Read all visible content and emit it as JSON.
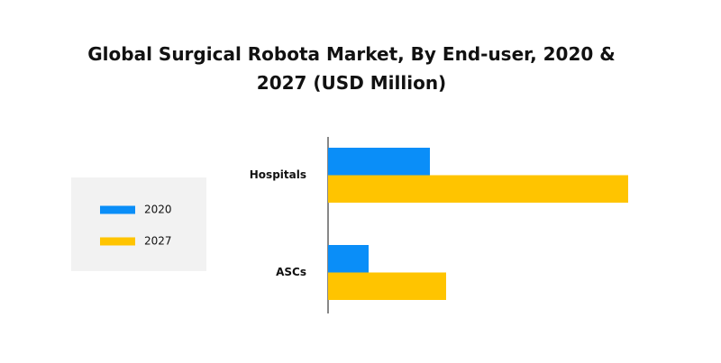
{
  "chart_data": {
    "type": "hbar",
    "title": "Global Surgical Robota Market, By End-user, 2020 & 2027 (USD Million)",
    "categories": [
      "Hospitals",
      "ASCs"
    ],
    "series": [
      {
        "name": "2020",
        "color": "#0a8ef8",
        "values": [
          113,
          45
        ]
      },
      {
        "name": "2027",
        "color": "#ffc400",
        "values": [
          333,
          131
        ]
      }
    ],
    "xlim": [
      0,
      350
    ]
  }
}
